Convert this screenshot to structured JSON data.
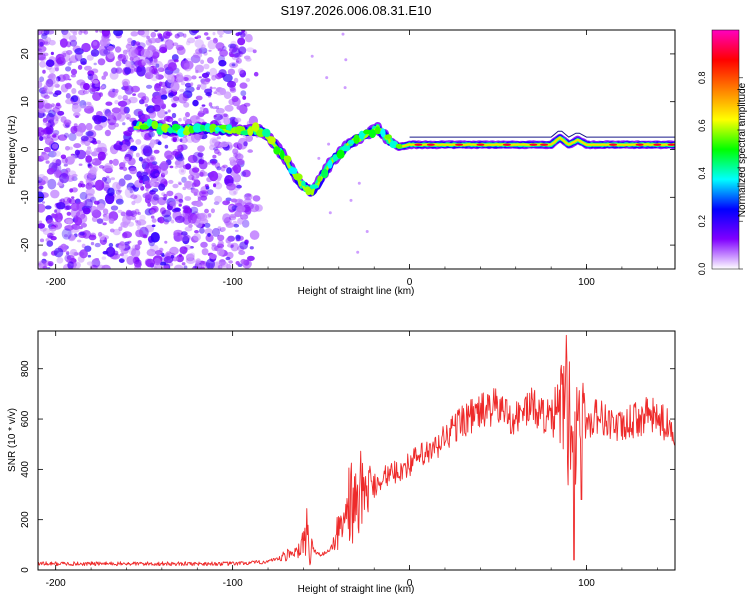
{
  "title": "S197.2026.006.08.31.E10",
  "chart_data": [
    {
      "type": "heatmap",
      "xlabel": "Height of straight line (km)",
      "ylabel": "Frequency (Hz)",
      "xlim": [
        -210,
        150
      ],
      "ylim": [
        -25,
        25
      ],
      "xticks": [
        -200,
        -100,
        0,
        100
      ],
      "yticks": [
        -20,
        -10,
        0,
        10,
        20
      ],
      "colorbar": {
        "label": "Normalized spectral amplitude",
        "range": [
          0,
          1
        ],
        "ticks": [
          "0.0",
          "0.2",
          "0.4",
          "0.6",
          "0.8"
        ],
        "colors": [
          "#ffffff",
          "#8000ff",
          "#0000ff",
          "#00ffff",
          "#00ff00",
          "#ffff00",
          "#ff8000",
          "#ff0000",
          "#ff00c0"
        ]
      },
      "ridge": {
        "x": [
          -155,
          -145,
          -135,
          -120,
          -100,
          -85,
          -78,
          -70,
          -62,
          -55,
          -50,
          -45,
          -40,
          -35,
          -30,
          -25,
          -18,
          -12,
          -6,
          0,
          10,
          30,
          60,
          80,
          85,
          90,
          95,
          100,
          120,
          150
        ],
        "freq": [
          5,
          5,
          4,
          4.5,
          4,
          4,
          2,
          -2,
          -7,
          -9,
          -6,
          -3,
          -1,
          1,
          2,
          3,
          4.5,
          2,
          0.5,
          1,
          1,
          1,
          1,
          1,
          2.5,
          1,
          2,
          1,
          1,
          1
        ]
      }
    },
    {
      "type": "line",
      "xlabel": "Height of straight line (km)",
      "ylabel": "SNR (10 * v/v)",
      "xlim": [
        -210,
        150
      ],
      "ylim": [
        0,
        950
      ],
      "xticks": [
        -200,
        -100,
        0,
        100
      ],
      "yticks": [
        0,
        200,
        400,
        600,
        800
      ],
      "series": [
        {
          "name": "SNR",
          "color": "#ee2a2a",
          "x": [
            -210,
            -180,
            -150,
            -120,
            -100,
            -85,
            -75,
            -65,
            -58,
            -55,
            -50,
            -45,
            -40,
            -35,
            -30,
            -25,
            -20,
            -15,
            -10,
            -5,
            0,
            5,
            10,
            15,
            20,
            25,
            30,
            35,
            40,
            45,
            50,
            55,
            60,
            65,
            70,
            75,
            80,
            84,
            87,
            90,
            92,
            95,
            98,
            102,
            105,
            110,
            115,
            120,
            125,
            130,
            135,
            140,
            145,
            150
          ],
          "y": [
            25,
            25,
            25,
            25,
            25,
            30,
            40,
            70,
            120,
            80,
            60,
            80,
            150,
            250,
            300,
            310,
            340,
            370,
            380,
            400,
            420,
            450,
            460,
            480,
            530,
            560,
            600,
            610,
            630,
            640,
            650,
            620,
            600,
            640,
            650,
            620,
            600,
            620,
            700,
            600,
            400,
            650,
            620,
            580,
            620,
            600,
            580,
            560,
            590,
            600,
            620,
            600,
            580,
            560
          ],
          "bursts": [
            {
              "x": -70,
              "amp": 25
            },
            {
              "x": -62,
              "amp": 40
            },
            {
              "x": -58,
              "amp": 120
            },
            {
              "x": -40,
              "amp": 80
            },
            {
              "x": -33,
              "amp": 180
            },
            {
              "x": -28,
              "amp": 150
            },
            {
              "x": -22,
              "amp": 80
            },
            {
              "x": 84,
              "amp": 80
            },
            {
              "x": 87,
              "amp": 200
            },
            {
              "x": 89,
              "amp": 250
            },
            {
              "x": 91,
              "amp": 260
            },
            {
              "x": 93,
              "amp": 200
            },
            {
              "x": 96,
              "amp": 120
            }
          ],
          "dips": [
            {
              "x": 93,
              "to": 40
            },
            {
              "x": 97,
              "to": 280
            }
          ]
        }
      ]
    }
  ]
}
